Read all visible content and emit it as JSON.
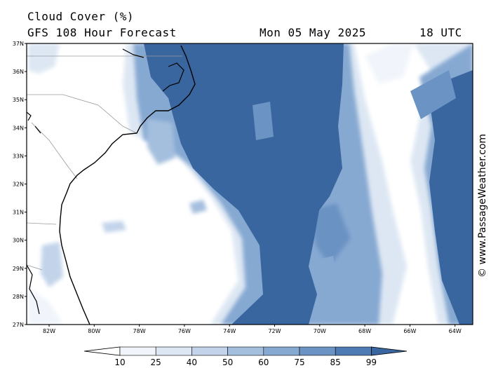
{
  "title": "Cloud Cover (%)",
  "subtitle": "GFS 108 Hour Forecast",
  "date": "Mon 05 May 2025",
  "time": "18 UTC",
  "credit": "© www.PassageWeather.com",
  "lat_labels": [
    "37N",
    "36N",
    "35N",
    "34N",
    "33N",
    "32N",
    "31N",
    "30N",
    "29N",
    "28N",
    "27N"
  ],
  "lon_labels": [
    "82W",
    "80W",
    "78W",
    "76W",
    "74W",
    "72W",
    "70W",
    "68W",
    "66W",
    "64W"
  ],
  "colorbar": {
    "labels": [
      "10",
      "25",
      "40",
      "50",
      "60",
      "75",
      "85",
      "99"
    ],
    "colors": [
      "#ffffff",
      "#f1f5fb",
      "#dde7f3",
      "#c3d4ea",
      "#a4bfde",
      "#86a9d2",
      "#6b93c4",
      "#4f7bb4",
      "#3a66a0"
    ]
  },
  "colors": {
    "frame": "#000000",
    "coast": "#000000",
    "border": "#9a9a9a",
    "cloud_max": "#3a66a0"
  }
}
